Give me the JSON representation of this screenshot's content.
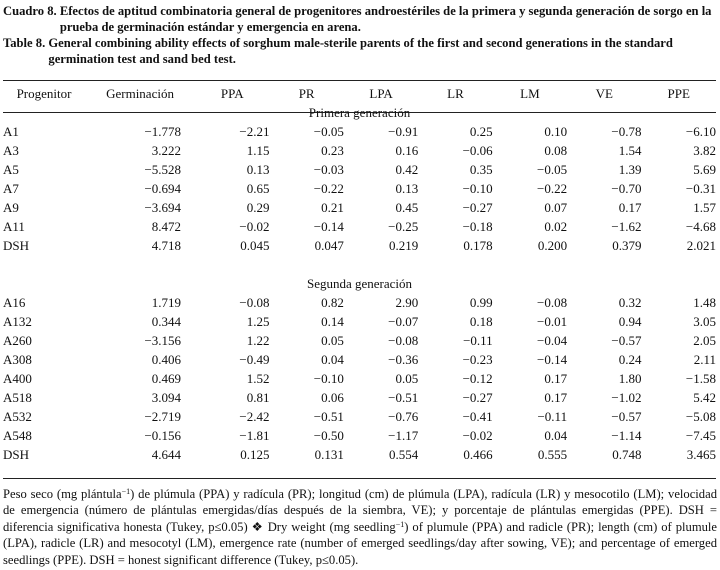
{
  "caption": {
    "es_label": "Cuadro 8.",
    "es_text": "Efectos de aptitud combinatoria general de progenitores androestériles de la primera y segunda generación de sorgo en la prueba de germinación estándar y emergencia en arena.",
    "en_label": "Table 8.",
    "en_text": "General combining ability effects of sorghum male-sterile parents of the first and second generations in the standard germination test and sand bed test."
  },
  "columns": [
    "Progenitor",
    "Germinación",
    "PPA",
    "PR",
    "LPA",
    "LR",
    "LM",
    "VE",
    "PPE"
  ],
  "sections": [
    {
      "title": "Primera generación",
      "rows": [
        [
          "A1",
          "−1.778",
          "−2.21",
          "−0.05",
          "−0.91",
          "0.25",
          "0.10",
          "−0.78",
          "−6.10"
        ],
        [
          "A3",
          "3.222",
          "1.15",
          "0.23",
          "0.16",
          "−0.06",
          "0.08",
          "1.54",
          "3.82"
        ],
        [
          "A5",
          "−5.528",
          "0.13",
          "−0.03",
          "0.42",
          "0.35",
          "−0.05",
          "1.39",
          "5.69"
        ],
        [
          "A7",
          "−0.694",
          "0.65",
          "−0.22",
          "0.13",
          "−0.10",
          "−0.22",
          "−0.70",
          "−0.31"
        ],
        [
          "A9",
          "−3.694",
          "0.29",
          "0.21",
          "0.45",
          "−0.27",
          "0.07",
          "0.17",
          "1.57"
        ],
        [
          "A11",
          "8.472",
          "−0.02",
          "−0.14",
          "−0.25",
          "−0.18",
          "0.02",
          "−1.62",
          "−4.68"
        ],
        [
          "DSH",
          "4.718",
          "0.045",
          "0.047",
          "0.219",
          "0.178",
          "0.200",
          "0.379",
          "2.021"
        ]
      ]
    },
    {
      "title": "Segunda generación",
      "rows": [
        [
          "A16",
          "1.719",
          "−0.08",
          "0.82",
          "2.90",
          "0.99",
          "−0.08",
          "0.32",
          "1.48"
        ],
        [
          "A132",
          "0.344",
          "1.25",
          "0.14",
          "−0.07",
          "0.18",
          "−0.01",
          "0.94",
          "3.05"
        ],
        [
          "A260",
          "−3.156",
          "1.22",
          "0.05",
          "−0.08",
          "−0.11",
          "−0.04",
          "−0.57",
          "2.05"
        ],
        [
          "A308",
          "0.406",
          "−0.49",
          "0.04",
          "−0.36",
          "−0.23",
          "−0.14",
          "0.24",
          "2.11"
        ],
        [
          "A400",
          "0.469",
          "1.52",
          "−0.10",
          "0.05",
          "−0.12",
          "0.17",
          "1.80",
          "−1.58"
        ],
        [
          "A518",
          "3.094",
          "0.81",
          "0.06",
          "−0.51",
          "−0.27",
          "0.17",
          "−1.02",
          "5.42"
        ],
        [
          "A532",
          "−2.719",
          "−2.42",
          "−0.51",
          "−0.76",
          "−0.41",
          "−0.11",
          "−0.57",
          "−5.08"
        ],
        [
          "A548",
          "−0.156",
          "−1.81",
          "−0.50",
          "−1.17",
          "−0.02",
          "0.04",
          "−1.14",
          "−7.45"
        ],
        [
          "DSH",
          "4.644",
          "0.125",
          "0.131",
          "0.554",
          "0.466",
          "0.555",
          "0.748",
          "3.465"
        ]
      ]
    }
  ],
  "footnote": {
    "p1": "Peso seco (mg plántula",
    "sup1": "−1",
    "p2": ") de plúmula (PPA) y radícula (PR); longitud (cm) de plúmula (LPA), radícula (LR) y mesocotilo (LM); velocidad de emergencia (número de plántulas emergidas/días después de la siembra, VE); y porcentaje de plántulas emergidas (PPE). DSH = diferencia significativa honesta (Tukey, p≤0.05) ❖ Dry weight (mg seedling",
    "sup2": "−1",
    "p3": ") of plumule (PPA) and radicle (PR); length (cm) of plumule (LPA), radicle (LR) and mesocotyl (LM), emergence rate (number of emerged seedlings/day after sowing, VE); and percentage of emerged seedlings (PPE). DSH = honest significant difference (Tukey, p≤0.05)."
  }
}
